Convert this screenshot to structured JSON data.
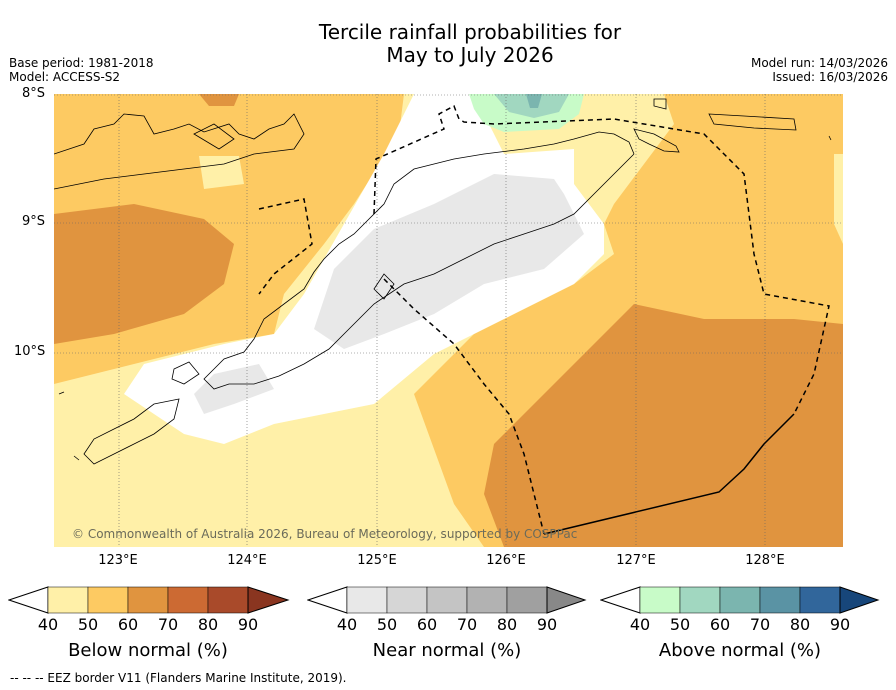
{
  "title": {
    "line1": "Tercile rainfall probabilities for",
    "line2": "May to July 2026"
  },
  "meta": {
    "base_period": "Base period: 1981-2018",
    "model": "Model: ACCESS-S2",
    "model_run": "Model run: 14/03/2026",
    "issued": "Issued: 16/03/2026"
  },
  "lat_labels": [
    "8°S",
    "9°S",
    "10°S"
  ],
  "lon_labels": [
    "123°E",
    "124°E",
    "125°E",
    "126°E",
    "127°E",
    "128°E"
  ],
  "copyright": "© Commonwealth of Australia 2026, Bureau of Meteorology, supported by COSPPac",
  "colorbars": {
    "below": {
      "label": "Below normal (%)",
      "ticks": [
        "40",
        "50",
        "60",
        "70",
        "80",
        "90"
      ],
      "colors": [
        "#fff0a8",
        "#fdca62",
        "#e0943f",
        "#cc6a33",
        "#a94a2a",
        "#8a3520"
      ]
    },
    "near": {
      "label": "Near normal (%)",
      "ticks": [
        "40",
        "50",
        "60",
        "70",
        "80",
        "90"
      ],
      "colors": [
        "#e8e8e8",
        "#d6d6d6",
        "#c4c4c4",
        "#b2b2b2",
        "#a0a0a0",
        "#888888"
      ]
    },
    "above": {
      "label": "Above normal (%)",
      "ticks": [
        "40",
        "50",
        "60",
        "70",
        "80",
        "90"
      ],
      "colors": [
        "#c8fbc8",
        "#a1d7c0",
        "#7bb5af",
        "#5a93a4",
        "#31669b",
        "#17467a"
      ]
    }
  },
  "footer": "-- -- -- EEZ border V11 (Flanders Marine Institute, 2019).",
  "map_colors": {
    "below_40": "#fff0a8",
    "below_50": "#fdca62",
    "below_60": "#e0943f",
    "near_40": "#e8e8e8",
    "above_40": "#c8fbc8",
    "above_50": "#a1d7c0",
    "above_60": "#7bb5af"
  }
}
